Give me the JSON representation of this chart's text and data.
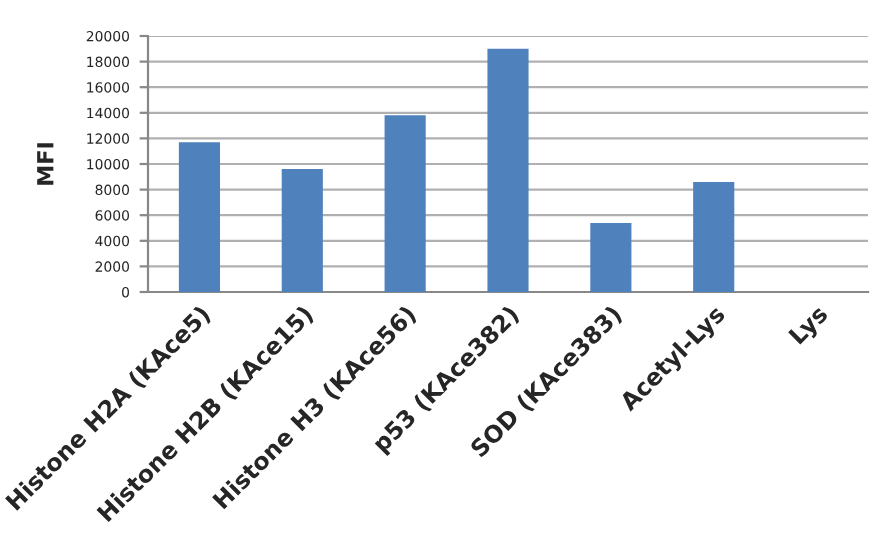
{
  "chart_data": {
    "type": "bar",
    "ylabel": "MFI",
    "categories": [
      "Histone H2A (KAce5)",
      "Histone H2B (KAce15)",
      "Histone H3 (KAce56)",
      "p53 (KAce382)",
      "SOD (KAce383)",
      "Acetyl-Lys",
      "Lys"
    ],
    "values": [
      11700,
      9600,
      13800,
      19000,
      5400,
      8600,
      0
    ],
    "color": "#4f81bd",
    "ylim": [
      0,
      20000
    ],
    "yticks": [
      0,
      2000,
      4000,
      6000,
      8000,
      10000,
      12000,
      14000,
      16000,
      18000,
      20000
    ],
    "grid": "y"
  }
}
